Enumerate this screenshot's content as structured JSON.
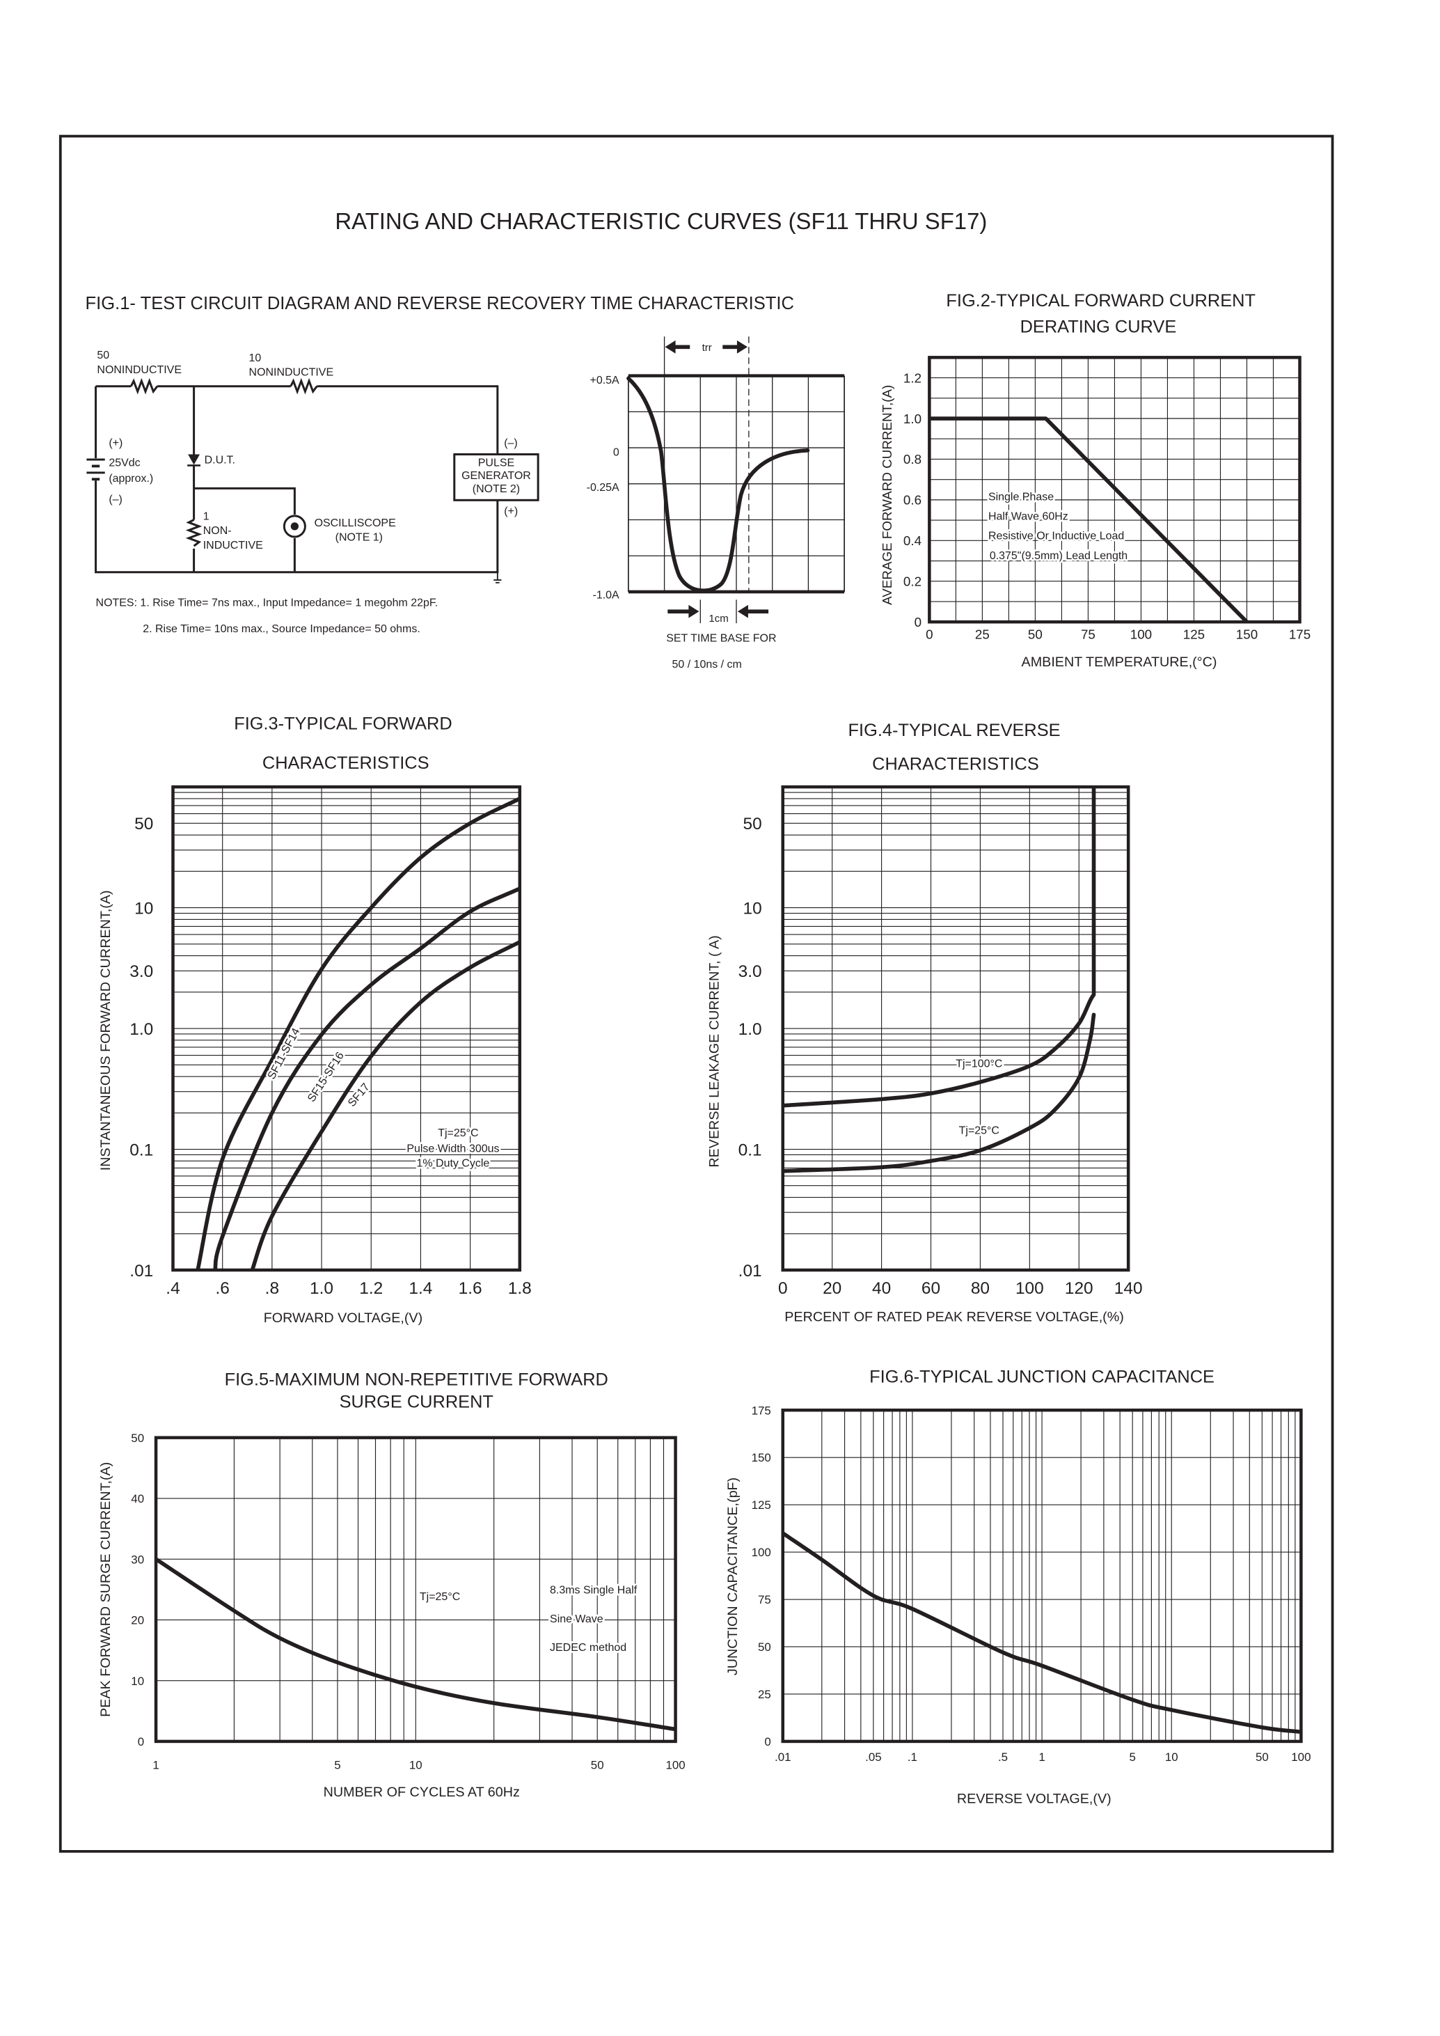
{
  "page": {
    "title": "RATING AND CHARACTERISTIC CURVES (SF11 THRU SF17)"
  },
  "fig1": {
    "title": "FIG.1- TEST CIRCUIT DIAGRAM AND REVERSE RECOVERY TIME CHARACTERISTIC",
    "circuit": {
      "r1_value": "50",
      "r1_type": "NONINDUCTIVE",
      "r2_value": "10",
      "r2_type": "NONINDUCTIVE",
      "battery_plus": "(+)",
      "battery_voltage": "25Vdc",
      "battery_approx": "(approx.)",
      "battery_minus": "(–)",
      "dut": "D.U.T.",
      "r3_value": "1",
      "r3_type_1": "NON-",
      "r3_type_2": "INDUCTIVE",
      "scope_1": "OSCILLISCOPE",
      "scope_2": "(NOTE 1)",
      "gen_minus": "(–)",
      "gen_1": "PULSE",
      "gen_2": "GENERATOR",
      "gen_3": "(NOTE 2)",
      "gen_plus": "(+)"
    },
    "notes": [
      "NOTES: 1. Rise Time= 7ns max., Input Impedance= 1 megohm 22pF.",
      "2. Rise Time= 10ns max., Source Impedance= 50 ohms."
    ],
    "waveform": {
      "trr_label": "trr",
      "y_labels": [
        "+0.5A",
        "0",
        "-0.25A",
        "-1.0A"
      ],
      "scale_label": "1cm",
      "time_base_1": "SET TIME BASE FOR",
      "time_base_2": "50 / 10ns / cm"
    }
  },
  "chart_data": [
    {
      "id": "fig2",
      "type": "line",
      "title": [
        "FIG.2-TYPICAL FORWARD CURRENT",
        "DERATING CURVE"
      ],
      "xlabel": "AMBIENT TEMPERATURE,(°C)",
      "ylabel": "AVERAGE FORWARD CURRENT,(A)",
      "xscale": "linear",
      "yscale": "linear",
      "xlim": [
        0,
        175
      ],
      "ylim": [
        0,
        1.3
      ],
      "grid": true,
      "xticks": [
        {
          "v": 0,
          "label": "0"
        },
        {
          "v": 25,
          "label": "25"
        },
        {
          "v": 50,
          "label": "50"
        },
        {
          "v": 75,
          "label": "75"
        },
        {
          "v": 100,
          "label": "100"
        },
        {
          "v": 125,
          "label": "125"
        },
        {
          "v": 150,
          "label": "150"
        },
        {
          "v": 175,
          "label": "175"
        }
      ],
      "yticks": [
        {
          "v": 0,
          "label": "0"
        },
        {
          "v": 0.2,
          "label": "0.2"
        },
        {
          "v": 0.4,
          "label": "0.4"
        },
        {
          "v": 0.6,
          "label": "0.6"
        },
        {
          "v": 0.8,
          "label": "0.8"
        },
        {
          "v": 1.0,
          "label": "1.0"
        },
        {
          "v": 1.2,
          "label": "1.2"
        }
      ],
      "annotations": [
        "Single Phase",
        "Half Wave 60Hz",
        "Resistive Or Inductive Load",
        "0.375\"(9.5mm) Lead Length"
      ],
      "series": [
        {
          "interp": "linear",
          "points": [
            [
              0,
              1.0
            ],
            [
              55,
              1.0
            ],
            [
              150,
              0
            ]
          ]
        }
      ]
    },
    {
      "id": "fig3",
      "type": "line",
      "title": [
        "FIG.3-TYPICAL FORWARD",
        "CHARACTERISTICS"
      ],
      "xlabel": "FORWARD VOLTAGE,(V)",
      "ylabel": "INSTANTANEOUS FORWARD CURRENT,(A)",
      "xscale": "linear",
      "yscale": "log",
      "xlim": [
        0.4,
        1.8
      ],
      "ylim": [
        0.01,
        100
      ],
      "grid": true,
      "xticks": [
        {
          "v": 0.4,
          "label": ".4"
        },
        {
          "v": 0.6,
          "label": ".6"
        },
        {
          "v": 0.8,
          "label": ".8"
        },
        {
          "v": 1.0,
          "label": "1.0"
        },
        {
          "v": 1.2,
          "label": "1.2"
        },
        {
          "v": 1.4,
          "label": "1.4"
        },
        {
          "v": 1.6,
          "label": "1.6"
        },
        {
          "v": 1.8,
          "label": "1.8"
        }
      ],
      "yticks": [
        {
          "v": 0.01,
          "label": ".01"
        },
        {
          "v": 0.1,
          "label": "0.1"
        },
        {
          "v": 1,
          "label": "1.0"
        },
        {
          "v": 3,
          "label": "3.0"
        },
        {
          "v": 10,
          "label": "10"
        },
        {
          "v": 50,
          "label": "50"
        }
      ],
      "annotations": [
        "Tj=25°C",
        "Pulse Width 300us",
        "1% Duty Cycle"
      ],
      "series": [
        {
          "name": "SF11-SF14",
          "interp": "smooth",
          "points": [
            [
              0.5,
              0.01
            ],
            [
              0.6,
              0.083
            ],
            [
              0.8,
              0.55
            ],
            [
              1.0,
              3.1
            ],
            [
              1.2,
              10
            ],
            [
              1.4,
              26
            ],
            [
              1.6,
              50
            ],
            [
              1.8,
              80
            ]
          ]
        },
        {
          "name": "SF15-SF16",
          "interp": "smooth",
          "points": [
            [
              0.57,
              0.01
            ],
            [
              0.6,
              0.019
            ],
            [
              0.8,
              0.2
            ],
            [
              1.0,
              0.89
            ],
            [
              1.2,
              2.3
            ],
            [
              1.4,
              4.6
            ],
            [
              1.6,
              9.3
            ],
            [
              1.8,
              14.4
            ]
          ]
        },
        {
          "name": "SF17",
          "interp": "smooth",
          "points": [
            [
              0.72,
              0.01
            ],
            [
              0.8,
              0.028
            ],
            [
              1.0,
              0.14
            ],
            [
              1.2,
              0.59
            ],
            [
              1.4,
              1.65
            ],
            [
              1.6,
              3.2
            ],
            [
              1.8,
              5.2
            ]
          ]
        }
      ]
    },
    {
      "id": "fig4",
      "type": "line",
      "title": [
        "FIG.4-TYPICAL REVERSE",
        "CHARACTERISTICS"
      ],
      "xlabel": "PERCENT OF RATED PEAK REVERSE VOLTAGE,(%)",
      "ylabel": "REVERSE LEAKAGE CURRENT, ( A)",
      "xscale": "linear",
      "yscale": "log",
      "xlim": [
        0,
        140
      ],
      "ylim": [
        0.01,
        100
      ],
      "grid": true,
      "xticks": [
        {
          "v": 0,
          "label": "0"
        },
        {
          "v": 20,
          "label": "20"
        },
        {
          "v": 40,
          "label": "40"
        },
        {
          "v": 60,
          "label": "60"
        },
        {
          "v": 80,
          "label": "80"
        },
        {
          "v": 100,
          "label": "100"
        },
        {
          "v": 120,
          "label": "120"
        },
        {
          "v": 140,
          "label": "140"
        }
      ],
      "yticks": [
        {
          "v": 0.01,
          "label": ".01"
        },
        {
          "v": 0.1,
          "label": "0.1"
        },
        {
          "v": 1,
          "label": "1.0"
        },
        {
          "v": 3,
          "label": "3.0"
        },
        {
          "v": 10,
          "label": "10"
        },
        {
          "v": 50,
          "label": "50"
        }
      ],
      "series": [
        {
          "name": "Tj=100°C",
          "interp": "smooth",
          "points": [
            [
              0,
              0.23
            ],
            [
              40,
              0.26
            ],
            [
              60,
              0.29
            ],
            [
              80,
              0.36
            ],
            [
              100,
              0.49
            ],
            [
              110,
              0.67
            ],
            [
              120,
              1.1
            ],
            [
              126,
              1.9
            ],
            [
              126,
              100
            ]
          ]
        },
        {
          "name": "Tj=25°C",
          "interp": "smooth",
          "points": [
            [
              0,
              0.066
            ],
            [
              40,
              0.071
            ],
            [
              60,
              0.08
            ],
            [
              80,
              0.098
            ],
            [
              100,
              0.15
            ],
            [
              110,
              0.21
            ],
            [
              120,
              0.39
            ],
            [
              124.5,
              0.81
            ],
            [
              126,
              1.3
            ]
          ]
        }
      ]
    },
    {
      "id": "fig5",
      "type": "line",
      "title": [
        "FIG.5-MAXIMUM NON-REPETITIVE FORWARD",
        "SURGE CURRENT"
      ],
      "xlabel": "NUMBER OF CYCLES AT 60Hz",
      "ylabel": "PEAK FORWARD SURGE CURRENT,(A)",
      "xscale": "log",
      "yscale": "linear",
      "xlim": [
        1,
        100
      ],
      "ylim": [
        0,
        50
      ],
      "grid": true,
      "xticks": [
        {
          "v": 1,
          "label": "1"
        },
        {
          "v": 5,
          "label": "5"
        },
        {
          "v": 10,
          "label": "10"
        },
        {
          "v": 50,
          "label": "50"
        },
        {
          "v": 100,
          "label": "100"
        }
      ],
      "yticks": [
        {
          "v": 0,
          "label": "0"
        },
        {
          "v": 10,
          "label": "10"
        },
        {
          "v": 20,
          "label": "20"
        },
        {
          "v": 30,
          "label": "30"
        },
        {
          "v": 40,
          "label": "40"
        },
        {
          "v": 50,
          "label": "50"
        }
      ],
      "annotations": [
        "Tj=25°C",
        "8.3ms Single Half",
        "Sine Wave",
        "JEDEC method"
      ],
      "series": [
        {
          "interp": "smooth",
          "points": [
            [
              1,
              30
            ],
            [
              2,
              21.5
            ],
            [
              3,
              17
            ],
            [
              5,
              13
            ],
            [
              10,
              9
            ],
            [
              20,
              6.3
            ],
            [
              50,
              4
            ],
            [
              100,
              2
            ]
          ]
        }
      ]
    },
    {
      "id": "fig6",
      "type": "line",
      "title": [
        "FIG.6-TYPICAL JUNCTION CAPACITANCE"
      ],
      "xlabel": "REVERSE VOLTAGE,(V)",
      "ylabel": "JUNCTION CAPACITANCE,(pF)",
      "xscale": "log",
      "yscale": "linear",
      "xlim": [
        0.01,
        100
      ],
      "ylim": [
        0,
        175
      ],
      "grid": true,
      "xticks": [
        {
          "v": 0.01,
          "label": ".01"
        },
        {
          "v": 0.05,
          "label": ".05"
        },
        {
          "v": 0.1,
          "label": ".1"
        },
        {
          "v": 0.5,
          "label": ".5"
        },
        {
          "v": 1,
          "label": "1"
        },
        {
          "v": 5,
          "label": "5"
        },
        {
          "v": 10,
          "label": "10"
        },
        {
          "v": 50,
          "label": "50"
        },
        {
          "v": 100,
          "label": "100"
        }
      ],
      "yticks": [
        {
          "v": 0,
          "label": "0"
        },
        {
          "v": 25,
          "label": "25"
        },
        {
          "v": 50,
          "label": "50"
        },
        {
          "v": 75,
          "label": "75"
        },
        {
          "v": 100,
          "label": "100"
        },
        {
          "v": 125,
          "label": "125"
        },
        {
          "v": 150,
          "label": "150"
        },
        {
          "v": 175,
          "label": "175"
        }
      ],
      "series": [
        {
          "interp": "smooth",
          "points": [
            [
              0.01,
              110
            ],
            [
              0.02,
              96
            ],
            [
              0.05,
              77
            ],
            [
              0.1,
              70
            ],
            [
              0.5,
              47
            ],
            [
              1,
              40
            ],
            [
              5,
              22
            ],
            [
              10,
              16.6
            ],
            [
              50,
              7.4
            ],
            [
              100,
              5
            ]
          ]
        }
      ]
    }
  ]
}
